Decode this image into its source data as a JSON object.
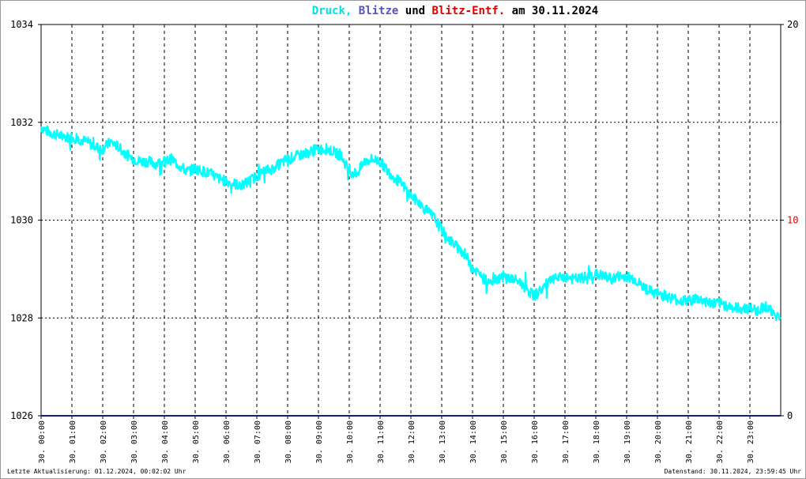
{
  "title": {
    "parts": [
      {
        "text": "Druck,",
        "color": "#00e0e0"
      },
      {
        "text": " ",
        "color": "#000000"
      },
      {
        "text": "Blitze",
        "color": "#5555bb"
      },
      {
        "text": " und ",
        "color": "#000000"
      },
      {
        "text": "Blitz-Entf.",
        "color": "#dd0000"
      },
      {
        "text": " am 30.11.2024",
        "color": "#000000"
      }
    ]
  },
  "footer": {
    "left": "Letzte Aktualisierung: 01.12.2024, 00:02:02 Uhr",
    "right": "Datenstand: 30.11.2024, 23:59:45 Uhr"
  },
  "chart_data": {
    "type": "line",
    "title": "Druck, Blitze und Blitz-Entf. am 30.11.2024",
    "xlabel": "",
    "ylabel": "",
    "categories": [
      "30. 00:00",
      "30. 01:00",
      "30. 02:00",
      "30. 03:00",
      "30. 04:00",
      "30. 05:00",
      "30. 06:00",
      "30. 07:00",
      "30. 08:00",
      "30. 09:00",
      "30. 10:00",
      "30. 11:00",
      "30. 12:00",
      "30. 13:00",
      "30. 14:00",
      "30. 15:00",
      "30. 16:00",
      "30. 17:00",
      "30. 18:00",
      "30. 19:00",
      "30. 20:00",
      "30. 21:00",
      "30. 22:00",
      "30. 23:00"
    ],
    "ylim": [
      1026,
      1034
    ],
    "yticks": [
      1026,
      1028,
      1030,
      1032,
      1034
    ],
    "y2lim": [
      0,
      20
    ],
    "y2ticks": [
      0,
      10,
      20
    ],
    "grid": true,
    "colors": {
      "druck": "#00ffff",
      "blitze": "#1a1a7a",
      "entf": "#dd0000",
      "grid": "#000000"
    },
    "series": [
      {
        "name": "Druck",
        "x": [
          0,
          0.25,
          0.5,
          0.75,
          1,
          1.25,
          1.5,
          1.75,
          2,
          2.25,
          2.5,
          2.75,
          3,
          3.25,
          3.5,
          3.75,
          4,
          4.25,
          4.5,
          4.75,
          5,
          5.25,
          5.5,
          5.75,
          6,
          6.25,
          6.5,
          6.75,
          7,
          7.25,
          7.5,
          7.75,
          8,
          8.25,
          8.5,
          8.75,
          9,
          9.25,
          9.5,
          9.75,
          10,
          10.25,
          10.5,
          10.75,
          11,
          11.25,
          11.5,
          11.75,
          12,
          12.25,
          12.5,
          12.75,
          13,
          13.25,
          13.5,
          13.75,
          14,
          14.25,
          14.5,
          14.75,
          15,
          15.25,
          15.5,
          15.75,
          16,
          16.25,
          16.5,
          16.75,
          17,
          17.25,
          17.5,
          17.75,
          18,
          18.25,
          18.5,
          18.75,
          19,
          19.25,
          19.5,
          19.75,
          20,
          20.25,
          20.5,
          20.75,
          21,
          21.25,
          21.5,
          21.75,
          22,
          22.25,
          22.5,
          22.75,
          23,
          23.25,
          23.5,
          23.75,
          24
        ],
        "values": [
          1031.9,
          1031.8,
          1031.75,
          1031.7,
          1031.7,
          1031.65,
          1031.6,
          1031.5,
          1031.45,
          1031.6,
          1031.5,
          1031.35,
          1031.25,
          1031.2,
          1031.2,
          1031.15,
          1031.2,
          1031.25,
          1031.1,
          1031.0,
          1031.05,
          1031.0,
          1030.95,
          1030.85,
          1030.8,
          1030.75,
          1030.7,
          1030.8,
          1030.9,
          1031.0,
          1031.05,
          1031.15,
          1031.25,
          1031.3,
          1031.35,
          1031.4,
          1031.45,
          1031.45,
          1031.4,
          1031.3,
          1031.0,
          1030.95,
          1031.2,
          1031.25,
          1031.2,
          1031.0,
          1030.85,
          1030.7,
          1030.5,
          1030.35,
          1030.2,
          1030.05,
          1029.8,
          1029.6,
          1029.45,
          1029.3,
          1029.05,
          1028.85,
          1028.75,
          1028.8,
          1028.85,
          1028.8,
          1028.75,
          1028.6,
          1028.45,
          1028.6,
          1028.75,
          1028.8,
          1028.85,
          1028.8,
          1028.8,
          1028.85,
          1028.9,
          1028.85,
          1028.8,
          1028.85,
          1028.85,
          1028.8,
          1028.65,
          1028.55,
          1028.5,
          1028.45,
          1028.4,
          1028.35,
          1028.35,
          1028.4,
          1028.35,
          1028.3,
          1028.3,
          1028.25,
          1028.2,
          1028.2,
          1028.2,
          1028.15,
          1028.25,
          1028.1,
          1028.0
        ]
      },
      {
        "name": "Blitze",
        "x": [
          0,
          24
        ],
        "values": [
          0,
          0
        ]
      }
    ]
  }
}
